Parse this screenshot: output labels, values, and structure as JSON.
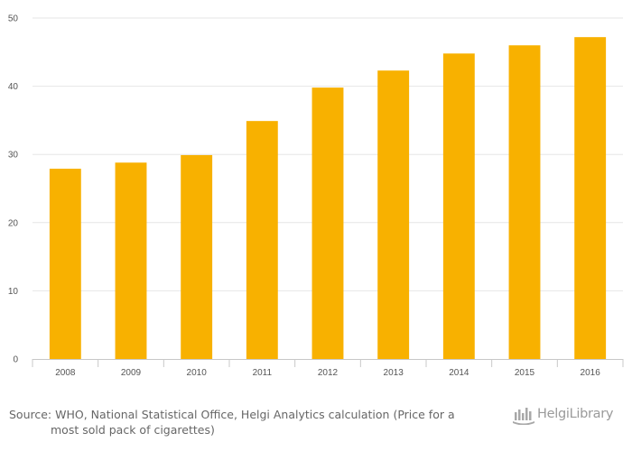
{
  "chart_data": {
    "type": "bar",
    "categories": [
      "2008",
      "2009",
      "2010",
      "2011",
      "2012",
      "2013",
      "2014",
      "2015",
      "2016"
    ],
    "values": [
      27.9,
      28.8,
      29.9,
      34.9,
      39.8,
      42.3,
      44.8,
      46.0,
      47.2
    ],
    "ylim": [
      0,
      50
    ],
    "yticks": [
      0,
      10,
      20,
      30,
      40,
      50
    ],
    "title": "",
    "xlabel": "",
    "ylabel": "",
    "bar_color": "#f8b100",
    "grid": true,
    "legend": "none"
  },
  "source": {
    "prefix": "Source:",
    "line1": "WHO, National Statistical Office, Helgi Analytics calculation (Price for a",
    "line2": "most sold pack of cigarettes)"
  },
  "logo": {
    "text": "HelgiLibrary",
    "icon": "helgilibrary-logo-icon",
    "color": "#9a9a9a"
  }
}
